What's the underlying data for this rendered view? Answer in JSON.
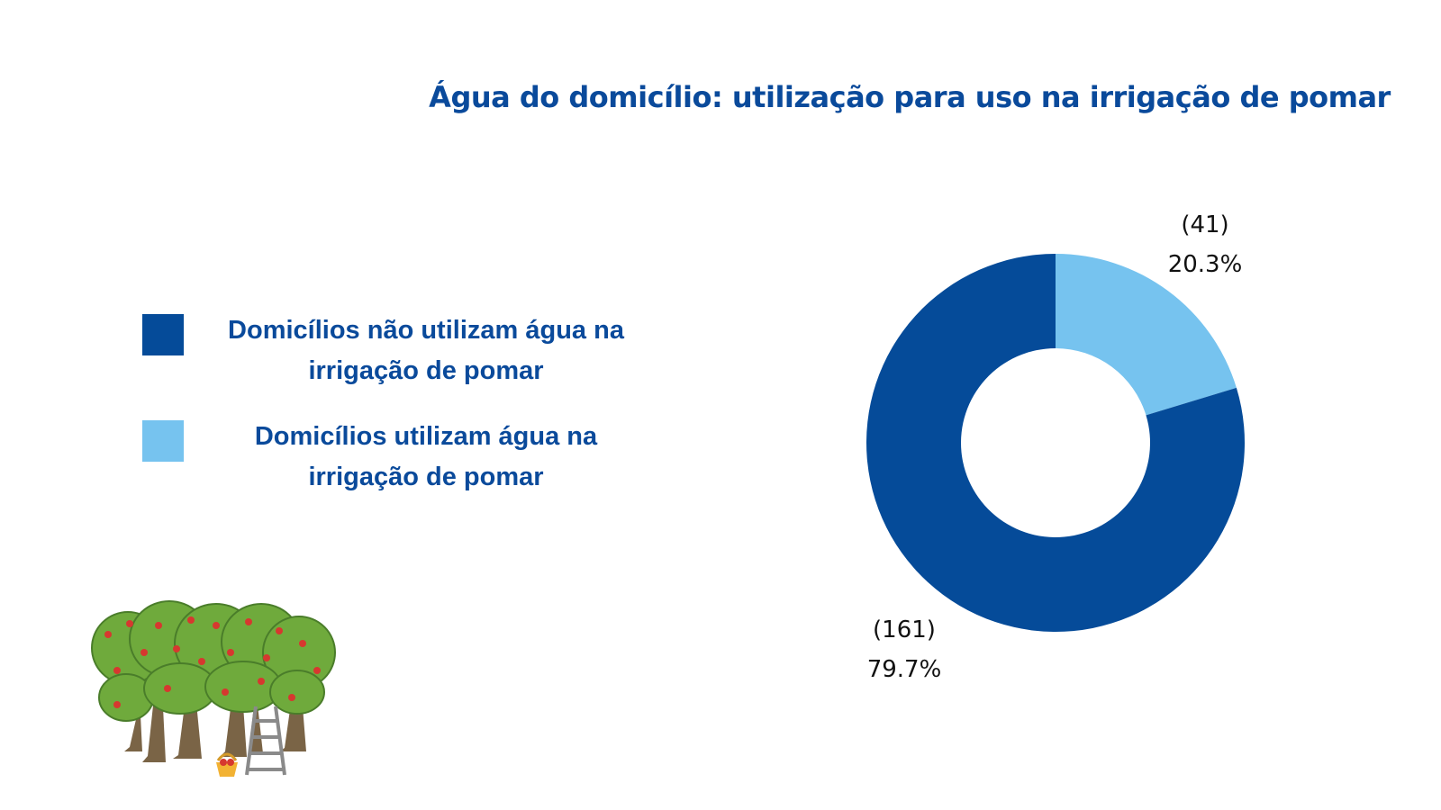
{
  "chart_data": {
    "type": "donut",
    "title": "Água do domicílio: utilização para uso na irrigação de pomar",
    "series": [
      {
        "name": "Domicílios não utilizam água na irrigação de pomar",
        "value": 161,
        "percent": 79.7,
        "count_label": "(161)",
        "percent_label": "79.7%",
        "color": "#054b99"
      },
      {
        "name": "Domicílios utilizam água na irrigação de pomar",
        "value": 41,
        "percent": 20.3,
        "count_label": "(41)",
        "percent_label": "20.3%",
        "color": "#76c3ef"
      }
    ],
    "legend_position": "left"
  },
  "decoration": {
    "icon": "orchard-illustration"
  }
}
